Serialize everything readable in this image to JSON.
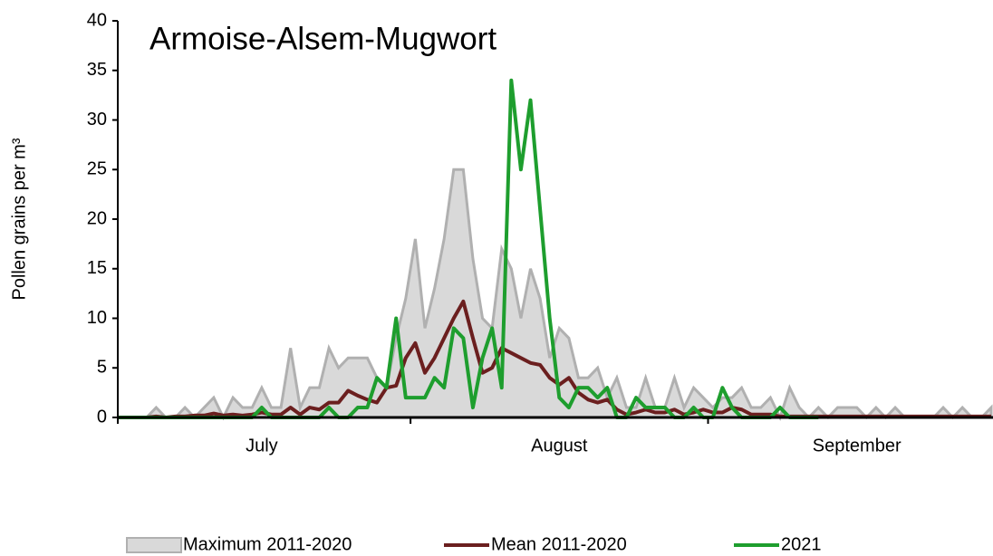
{
  "chart_data": {
    "type": "line",
    "title": "Armoise-Alsem-Mugwort",
    "y_label": "Pollen grains per m³",
    "categories": [
      null,
      null,
      null,
      null,
      null,
      null,
      null,
      null,
      null,
      null,
      null,
      null,
      null,
      null,
      null,
      "July",
      null,
      null,
      null,
      null,
      null,
      null,
      null,
      null,
      null,
      null,
      null,
      null,
      null,
      null,
      null,
      null,
      null,
      null,
      null,
      null,
      null,
      null,
      null,
      null,
      null,
      null,
      null,
      null,
      null,
      null,
      "August",
      null,
      null,
      null,
      null,
      null,
      null,
      null,
      null,
      null,
      null,
      null,
      null,
      null,
      null,
      null,
      null,
      null,
      null,
      null,
      null,
      null,
      null,
      null,
      null,
      null,
      null,
      null,
      null,
      null,
      null,
      "September",
      null,
      null,
      null,
      null,
      null,
      null,
      null,
      null,
      null,
      null,
      null,
      null,
      null,
      null
    ],
    "series": [
      {
        "name": "Maximum 2011-2020",
        "color": "#b0b0b0",
        "fill": "#d9d9d9",
        "style": "area",
        "values": [
          0,
          0,
          0,
          0,
          1,
          0,
          0,
          1,
          0,
          1,
          2,
          0,
          2,
          1,
          1,
          3,
          1,
          1,
          7,
          1,
          3,
          3,
          7,
          5,
          6,
          6,
          6,
          4,
          3,
          8,
          12,
          18,
          9,
          13,
          18,
          25,
          25,
          16,
          10,
          9,
          17,
          15,
          10,
          15,
          12,
          6,
          9,
          8,
          4,
          4,
          5,
          2,
          4,
          1,
          1,
          4,
          1,
          1,
          4,
          1,
          3,
          2,
          1,
          2,
          2,
          3,
          1,
          1,
          2,
          0,
          3,
          1,
          0,
          1,
          0,
          1,
          1,
          1,
          0,
          1,
          0,
          1,
          0,
          0,
          0,
          0,
          1,
          0,
          1,
          0,
          0,
          1
        ]
      },
      {
        "name": "Mean 2011-2020",
        "color": "#6b1f1f",
        "style": "line",
        "values": [
          0,
          0,
          0,
          0,
          0.1,
          0,
          0.1,
          0.1,
          0.2,
          0.2,
          0.4,
          0.2,
          0.3,
          0.2,
          0.3,
          0.5,
          0.3,
          0.3,
          1,
          0.3,
          1,
          0.8,
          1.5,
          1.5,
          2.7,
          2.2,
          1.8,
          1.5,
          3,
          3.2,
          6,
          7.5,
          4.5,
          6,
          8,
          10,
          11.7,
          8,
          4.5,
          5,
          7,
          6.5,
          6,
          5.5,
          5.3,
          4,
          3.3,
          4,
          2.5,
          1.8,
          1.5,
          1.8,
          0.8,
          0.3,
          0.5,
          0.8,
          0.5,
          0.5,
          0.8,
          0.3,
          0.5,
          0.8,
          0.5,
          0.5,
          1,
          0.8,
          0.3,
          0.3,
          0.3,
          0.1,
          0.1,
          0.1,
          0.1,
          0.1,
          0.1,
          0.1,
          0.1,
          0.1,
          0.1,
          0.1,
          0.1,
          0.1,
          0.1,
          0.1,
          0.1,
          0.1,
          0.1,
          0.1,
          0.1,
          0.1,
          0.1,
          0.1
        ]
      },
      {
        "name": "2021",
        "color": "#1e9e2e",
        "style": "line",
        "values": [
          0,
          0,
          0,
          0,
          0,
          0,
          0,
          0,
          0,
          0,
          0,
          0,
          0,
          0,
          0,
          1,
          0,
          0,
          0,
          0,
          0,
          0,
          1,
          0,
          0,
          1,
          1,
          4,
          3,
          10,
          2,
          2,
          2,
          4,
          3,
          9,
          8,
          1,
          6,
          9,
          3,
          34,
          25,
          32,
          21,
          10,
          2,
          1,
          3,
          3,
          2,
          3,
          0,
          0,
          2,
          1,
          1,
          1,
          0,
          0,
          1,
          0,
          0,
          3,
          1,
          0,
          0,
          0,
          0,
          1,
          0,
          0,
          0,
          0,
          null,
          null,
          null,
          null,
          null,
          null,
          null,
          null,
          null,
          null,
          null,
          null,
          null,
          null,
          null,
          null,
          null,
          null
        ]
      }
    ],
    "ylim": [
      0,
      40
    ],
    "yticks": [
      0,
      5,
      10,
      15,
      20,
      25,
      30,
      35,
      40
    ]
  }
}
